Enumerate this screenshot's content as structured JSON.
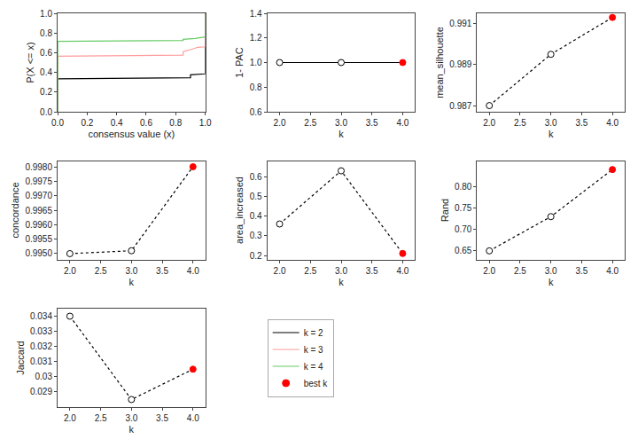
{
  "chart_data": [
    {
      "type": "line",
      "xlabel": "consensus value (x)",
      "ylabel": "P(X <= x)",
      "xlim": [
        0.0,
        1.0
      ],
      "ylim": [
        0.0,
        1.0
      ],
      "xticks": [
        {
          "value": 0.0,
          "label": "0.0"
        },
        0.2,
        0.4,
        0.6,
        0.8,
        {
          "value": 1.0,
          "label": "1.0"
        }
      ],
      "yticks": [
        {
          "value": 0.0,
          "label": "0.0"
        },
        0.2,
        0.4,
        0.6,
        0.8,
        {
          "value": 1.0,
          "label": "1.0"
        }
      ],
      "grid": false,
      "series": [
        {
          "name": "k = 2",
          "color": "#000000",
          "x": [
            0.0,
            0.0,
            0.001,
            0.9,
            0.9,
            0.999,
            1.0,
            1.0
          ],
          "values": [
            0.0,
            0.33,
            0.335,
            0.345,
            0.375,
            0.385,
            0.39,
            1.0
          ]
        },
        {
          "name": "k = 3",
          "color": "#FF9999",
          "x": [
            0.0,
            0.0,
            0.001,
            0.85,
            0.85,
            0.91,
            0.95,
            0.999,
            1.0,
            1.0
          ],
          "values": [
            0.0,
            0.52,
            0.565,
            0.575,
            0.61,
            0.635,
            0.655,
            0.66,
            0.67,
            1.0
          ]
        },
        {
          "name": "k = 4",
          "color": "#66CC66",
          "x": [
            0.0,
            0.0,
            0.001,
            0.85,
            0.85,
            0.93,
            0.96,
            0.999,
            1.0,
            1.0
          ],
          "values": [
            0.0,
            0.68,
            0.715,
            0.725,
            0.735,
            0.745,
            0.752,
            0.755,
            0.76,
            1.0
          ]
        }
      ]
    },
    {
      "type": "line",
      "xlabel": "k",
      "ylabel": "1- PAC",
      "x": [
        2.0,
        3.0,
        4.0
      ],
      "xlim": [
        1.8,
        4.2
      ],
      "xticks": [
        {
          "value": 2.0,
          "label": "2.0"
        },
        2.5,
        {
          "value": 3.0,
          "label": "3.0"
        },
        3.5,
        {
          "value": 4.0,
          "label": "4.0"
        }
      ],
      "ylim": [
        0.6,
        1.4
      ],
      "yticks": [
        0.6,
        0.8,
        {
          "value": 1.0,
          "label": "1.0"
        },
        1.2,
        1.4
      ],
      "grid": false,
      "series": [
        {
          "values": [
            1.0,
            1.0,
            1.0
          ],
          "color": "#000000",
          "line_style": "solid",
          "marker": "circle",
          "colors": [
            "#FFFFFF",
            "#FFFFFF",
            "#FF0000"
          ]
        }
      ]
    },
    {
      "type": "line",
      "xlabel": "k",
      "ylabel": "mean_silhouette",
      "x": [
        2.0,
        3.0,
        4.0
      ],
      "xlim": [
        1.8,
        4.2
      ],
      "xticks": [
        {
          "value": 2.0,
          "label": "2.0"
        },
        2.5,
        {
          "value": 3.0,
          "label": "3.0"
        },
        3.5,
        {
          "value": 4.0,
          "label": "4.0"
        }
      ],
      "ylim": [
        0.9867,
        0.9915
      ],
      "yticks": [
        0.987,
        0.989,
        0.991
      ],
      "grid": false,
      "series": [
        {
          "values": [
            0.987,
            0.9895,
            0.9913
          ],
          "color": "#000000",
          "line_style": "dotted",
          "marker": "circle",
          "colors": [
            "#FFFFFF",
            "#FFFFFF",
            "#FF0000"
          ]
        }
      ]
    },
    {
      "type": "line",
      "xlabel": "k",
      "ylabel": "concordance",
      "x": [
        2.0,
        3.0,
        4.0
      ],
      "xlim": [
        1.8,
        4.2
      ],
      "xticks": [
        {
          "value": 2.0,
          "label": "2.0"
        },
        2.5,
        {
          "value": 3.0,
          "label": "3.0"
        },
        3.5,
        {
          "value": 4.0,
          "label": "4.0"
        }
      ],
      "ylim": [
        0.9948,
        0.9982
      ],
      "yticks": [
        {
          "value": 0.995,
          "label": "0.9950"
        },
        0.9955,
        {
          "value": 0.996,
          "label": "0.9960"
        },
        0.9965,
        {
          "value": 0.997,
          "label": "0.9970"
        },
        0.9975,
        {
          "value": 0.998,
          "label": "0.9980"
        }
      ],
      "grid": false,
      "series": [
        {
          "values": [
            0.995,
            0.9951,
            0.998
          ],
          "color": "#000000",
          "line_style": "dotted",
          "marker": "circle",
          "colors": [
            "#FFFFFF",
            "#FFFFFF",
            "#FF0000"
          ]
        }
      ]
    },
    {
      "type": "line",
      "xlabel": "k",
      "ylabel": "area_increased",
      "x": [
        2.0,
        3.0,
        4.0
      ],
      "xlim": [
        1.8,
        4.2
      ],
      "xticks": [
        {
          "value": 2.0,
          "label": "2.0"
        },
        2.5,
        {
          "value": 3.0,
          "label": "3.0"
        },
        3.5,
        {
          "value": 4.0,
          "label": "4.0"
        }
      ],
      "ylim": [
        0.18,
        0.68
      ],
      "yticks": [
        0.2,
        0.3,
        0.4,
        0.5,
        0.6
      ],
      "grid": false,
      "series": [
        {
          "values": [
            0.36,
            0.63,
            0.21
          ],
          "color": "#000000",
          "line_style": "dotted",
          "marker": "circle",
          "colors": [
            "#FFFFFF",
            "#FFFFFF",
            "#FF0000"
          ]
        }
      ]
    },
    {
      "type": "line",
      "xlabel": "k",
      "ylabel": "Rand",
      "x": [
        2.0,
        3.0,
        4.0
      ],
      "xlim": [
        1.8,
        4.2
      ],
      "xticks": [
        {
          "value": 2.0,
          "label": "2.0"
        },
        2.5,
        {
          "value": 3.0,
          "label": "3.0"
        },
        3.5,
        {
          "value": 4.0,
          "label": "4.0"
        }
      ],
      "ylim": [
        0.63,
        0.86
      ],
      "yticks": [
        0.65,
        {
          "value": 0.7,
          "label": "0.70"
        },
        0.75,
        {
          "value": 0.8,
          "label": "0.80"
        }
      ],
      "grid": false,
      "series": [
        {
          "values": [
            0.65,
            0.73,
            0.84
          ],
          "color": "#000000",
          "line_style": "dotted",
          "marker": "circle",
          "colors": [
            "#FFFFFF",
            "#FFFFFF",
            "#FF0000"
          ]
        }
      ]
    },
    {
      "type": "line",
      "xlabel": "k",
      "ylabel": "Jaccard",
      "x": [
        2.0,
        3.0,
        4.0
      ],
      "xlim": [
        1.8,
        4.2
      ],
      "xticks": [
        {
          "value": 2.0,
          "label": "2.0"
        },
        2.5,
        {
          "value": 3.0,
          "label": "3.0"
        },
        3.5,
        {
          "value": 4.0,
          "label": "4.0"
        }
      ],
      "ylim": [
        0.028,
        0.0345
      ],
      "yticks": [
        0.029,
        0.03,
        0.031,
        0.032,
        0.033,
        0.034
      ],
      "grid": false,
      "series": [
        {
          "values": [
            0.034,
            0.0285,
            0.0305
          ],
          "color": "#000000",
          "line_style": "dotted",
          "marker": "circle",
          "colors": [
            "#FFFFFF",
            "#FFFFFF",
            "#FF0000"
          ]
        }
      ]
    },
    {
      "type": "legend",
      "series": [
        {
          "name": "best k",
          "color": "#FF0000",
          "marker": "circle"
        }
      ]
    }
  ]
}
